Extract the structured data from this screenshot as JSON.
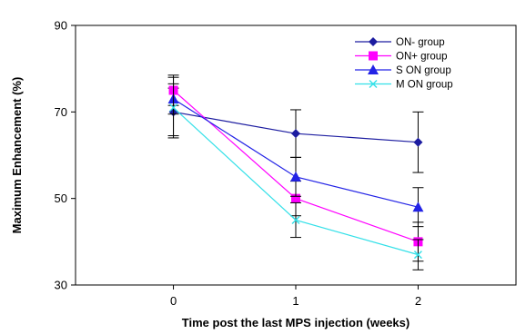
{
  "chart_data": {
    "type": "line",
    "title": "",
    "xlabel": "Time post the last MPS injection (weeks)",
    "ylabel": "Maximum Enhancement (%)",
    "x": [
      0,
      1,
      2
    ],
    "x_ticks": [
      "0",
      "1",
      "2"
    ],
    "xlim": [
      -0.8,
      2.8
    ],
    "ylim": [
      30,
      90
    ],
    "y_ticks": [
      30,
      50,
      70,
      90
    ],
    "grid": false,
    "legend_position": "top-right",
    "series": [
      {
        "name": "ON- group",
        "values": [
          70,
          65,
          63
        ],
        "errors": [
          5.5,
          5.5,
          7
        ],
        "color": "#1c1ca0",
        "marker": "diamond"
      },
      {
        "name": "ON+ group",
        "values": [
          75,
          50,
          40
        ],
        "errors": [
          3.5,
          4,
          4.5
        ],
        "color": "#ff00ff",
        "marker": "square"
      },
      {
        "name": "S ON group",
        "values": [
          73,
          55,
          48
        ],
        "errors": [
          3.5,
          4.5,
          4.5
        ],
        "color": "#2323e6",
        "marker": "triangle"
      },
      {
        "name": "M ON group",
        "values": [
          71,
          45,
          37
        ],
        "errors": [
          7,
          4,
          3.5
        ],
        "color": "#33e0e8",
        "marker": "x"
      }
    ]
  }
}
